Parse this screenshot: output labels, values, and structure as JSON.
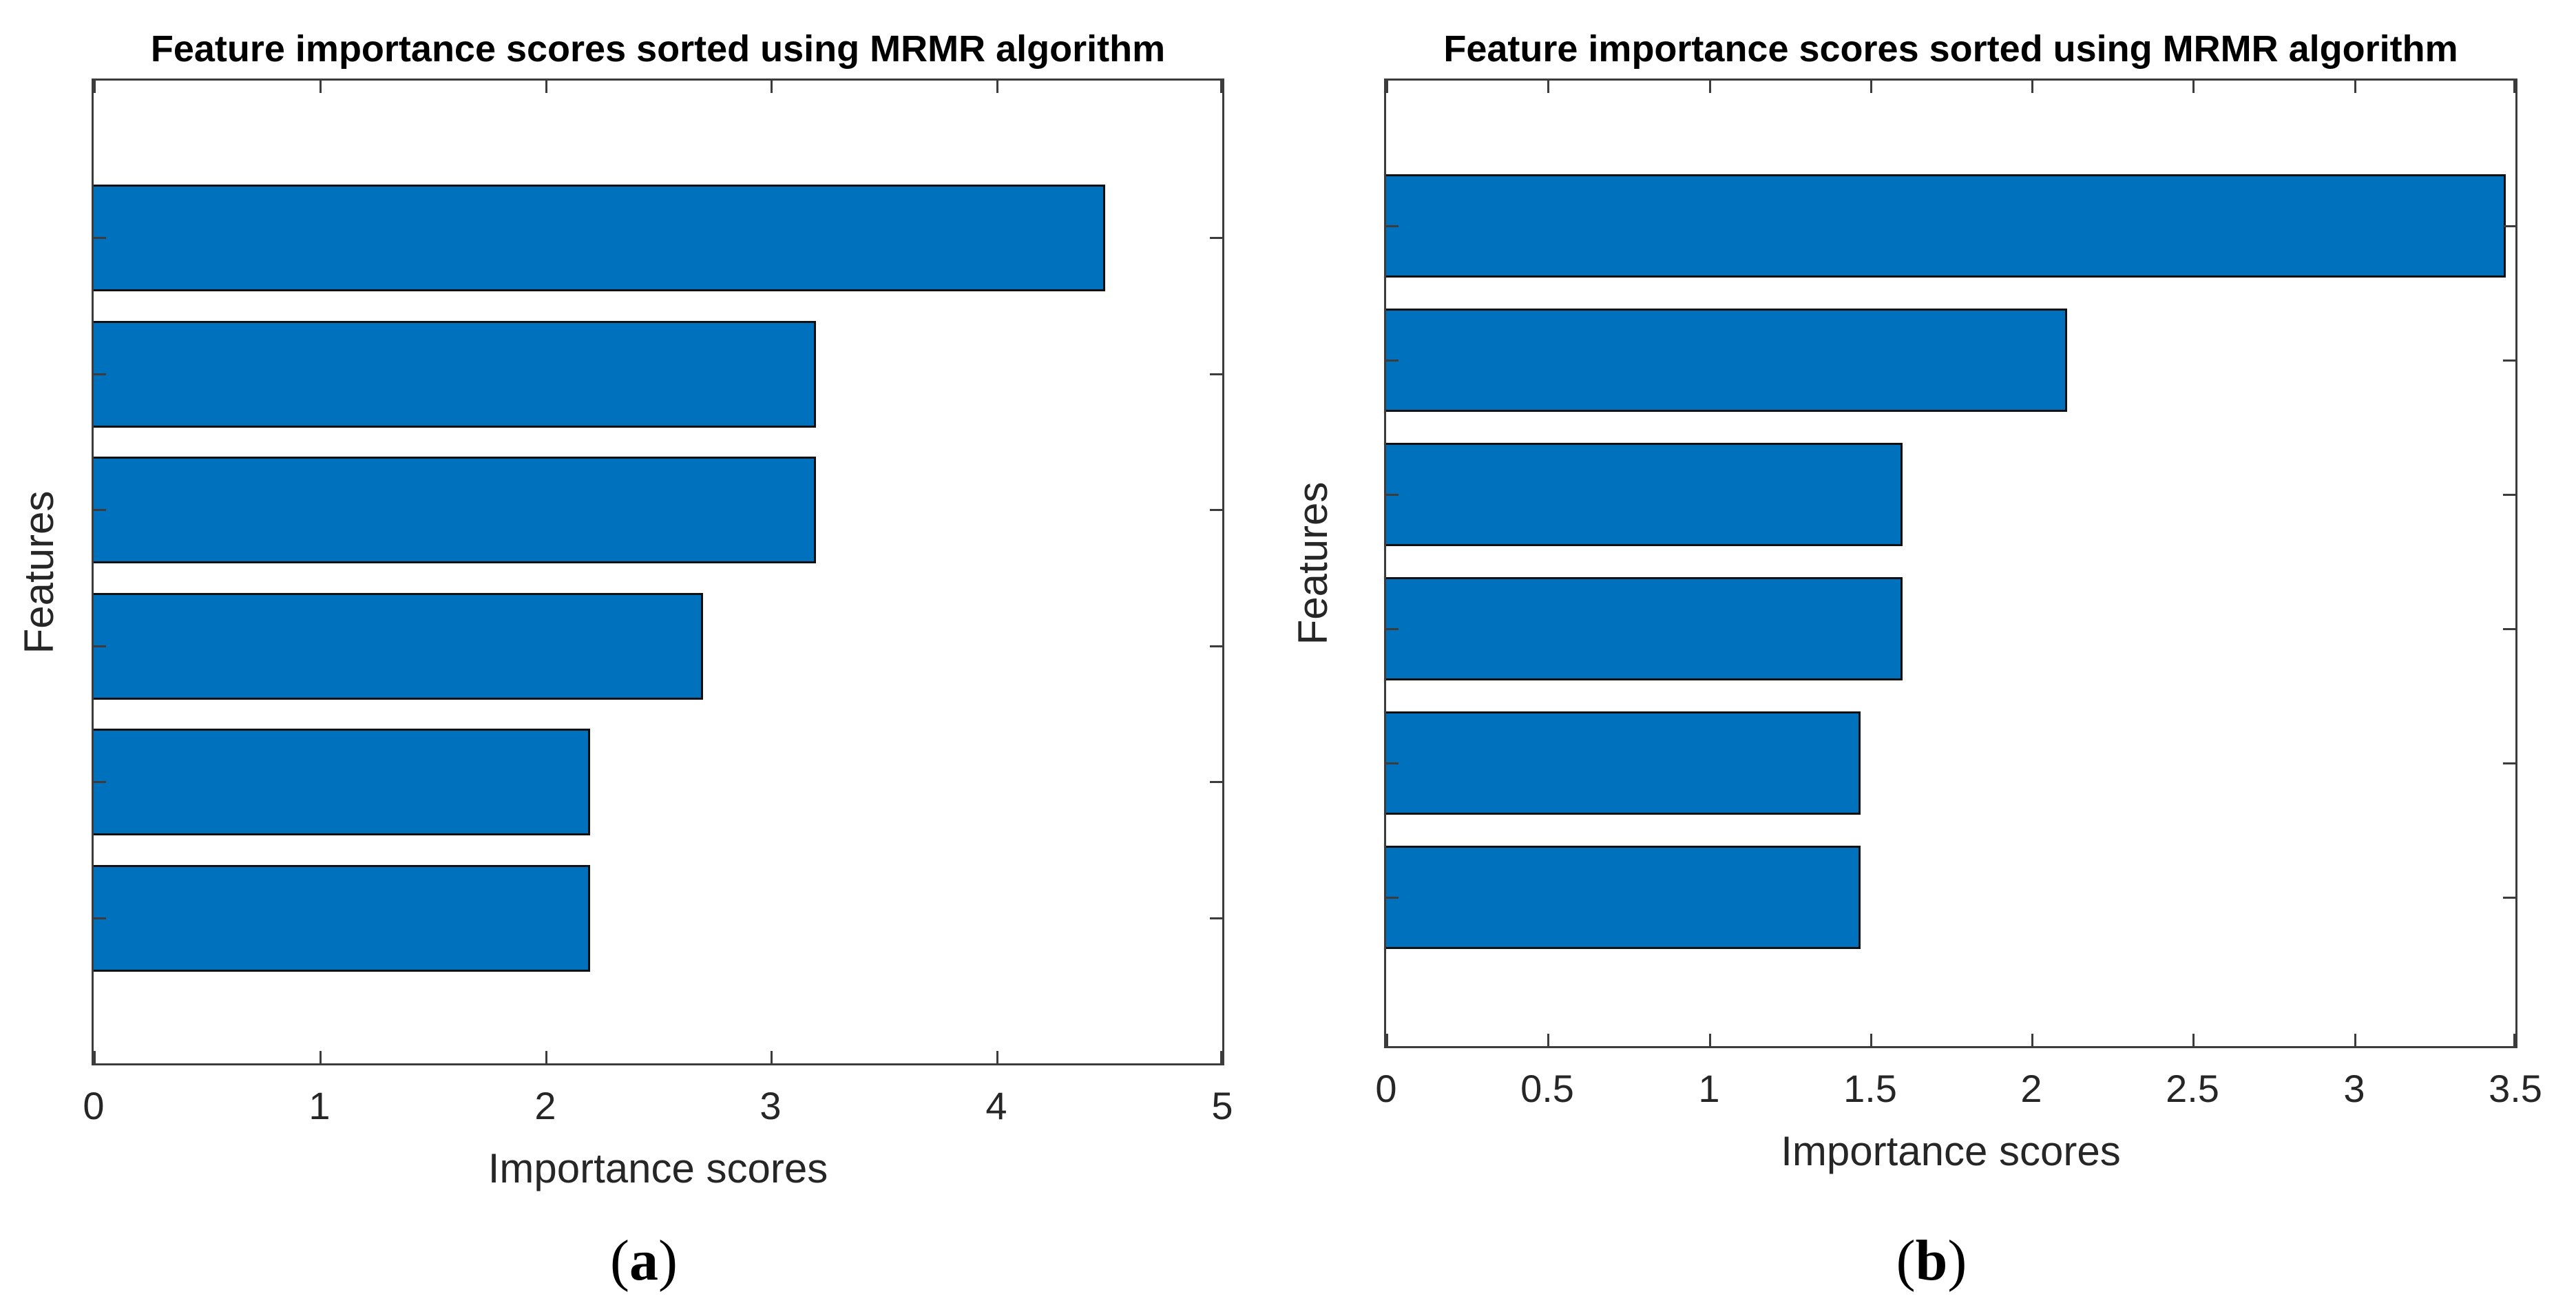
{
  "figure": {
    "colors": {
      "bar_fill": "#0072BD",
      "bar_edge": "#101010",
      "axis_line": "#3c3c3c",
      "tick_text": "#262626",
      "title_text": "#000000"
    }
  },
  "chart_data": [
    {
      "type": "bar",
      "orientation": "horizontal",
      "title": "Feature importance scores sorted using MRMR algorithm",
      "xlabel": "Importance scores",
      "ylabel": "Features",
      "caption": {
        "open": "(",
        "letter": "a",
        "close": ")"
      },
      "categories": [
        "",
        "",
        "",
        "",
        "",
        ""
      ],
      "values": [
        4.48,
        3.2,
        3.2,
        2.7,
        2.2,
        2.2
      ],
      "xlim": [
        0,
        5
      ],
      "x_ticks": [
        0,
        1,
        2,
        3,
        4,
        5
      ],
      "x_tick_labels": [
        "0",
        "1",
        "2",
        "3",
        "4",
        "5"
      ],
      "grid": false,
      "legend": false,
      "bar_color": "#0072BD",
      "bar_edge_color": "#101010"
    },
    {
      "type": "bar",
      "orientation": "horizontal",
      "title": "Feature importance scores sorted using MRMR algorithm",
      "xlabel": "Importance scores",
      "ylabel": "Features",
      "caption": {
        "open": "(",
        "letter": "b",
        "close": ")"
      },
      "categories": [
        "",
        "",
        "",
        "",
        "",
        ""
      ],
      "values": [
        3.47,
        2.11,
        1.6,
        1.6,
        1.47,
        1.47
      ],
      "xlim": [
        0,
        3.5
      ],
      "x_ticks": [
        0,
        0.5,
        1,
        1.5,
        2,
        2.5,
        3,
        3.5
      ],
      "x_tick_labels": [
        "0",
        "0.5",
        "1",
        "1.5",
        "2",
        "2.5",
        "3",
        "3.5"
      ],
      "grid": false,
      "legend": false,
      "bar_color": "#0072BD",
      "bar_edge_color": "#101010"
    }
  ]
}
